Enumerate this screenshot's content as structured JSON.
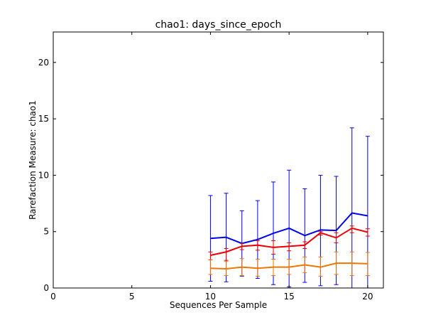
{
  "chart_data": {
    "type": "line",
    "title": "chao1: days_since_epoch",
    "xlabel": "Sequences Per Sample",
    "ylabel": "Rarefaction Measure: chao1",
    "xlim": [
      0,
      21
    ],
    "ylim": [
      0,
      22.7
    ],
    "xticks": [
      0,
      5,
      10,
      15,
      20
    ],
    "yticks": [
      0,
      5,
      10,
      15,
      20
    ],
    "grid": false,
    "x": [
      10,
      11,
      12,
      13,
      14,
      15,
      16,
      17,
      18,
      19,
      20
    ],
    "series": [
      {
        "color": "#0000ee",
        "values": [
          4.4,
          4.5,
          3.95,
          4.3,
          4.85,
          5.3,
          4.65,
          5.15,
          5.1,
          6.65,
          6.4
        ],
        "err_low": [
          0.6,
          0.55,
          1.05,
          0.85,
          0.3,
          0.1,
          0.5,
          0.2,
          0.3,
          0.0,
          0.0
        ],
        "err_high": [
          8.2,
          8.4,
          6.85,
          7.75,
          9.4,
          10.45,
          8.8,
          10.0,
          9.9,
          14.2,
          13.45
        ]
      },
      {
        "color": "#ee0000",
        "values": [
          2.9,
          3.2,
          3.7,
          3.8,
          3.6,
          3.7,
          3.8,
          4.9,
          4.45,
          5.3,
          4.95
        ],
        "err_low": [
          2.5,
          2.45,
          3.4,
          3.35,
          3.0,
          3.3,
          3.5,
          4.7,
          4.0,
          4.9,
          4.6
        ],
        "err_high": [
          3.2,
          3.5,
          3.95,
          4.2,
          4.2,
          4.0,
          4.1,
          5.0,
          4.9,
          5.5,
          5.25
        ]
      },
      {
        "color": "#ee7700",
        "values": [
          1.75,
          1.7,
          1.85,
          1.75,
          1.85,
          1.85,
          2.05,
          1.85,
          2.2,
          2.2,
          2.15
        ],
        "err_low": [
          1.2,
          1.1,
          1.1,
          1.05,
          1.1,
          1.2,
          1.35,
          1.05,
          1.2,
          1.1,
          1.1
        ],
        "err_high": [
          2.5,
          2.35,
          2.6,
          2.55,
          2.55,
          2.55,
          2.75,
          2.75,
          3.2,
          3.2,
          3.15
        ]
      }
    ]
  }
}
